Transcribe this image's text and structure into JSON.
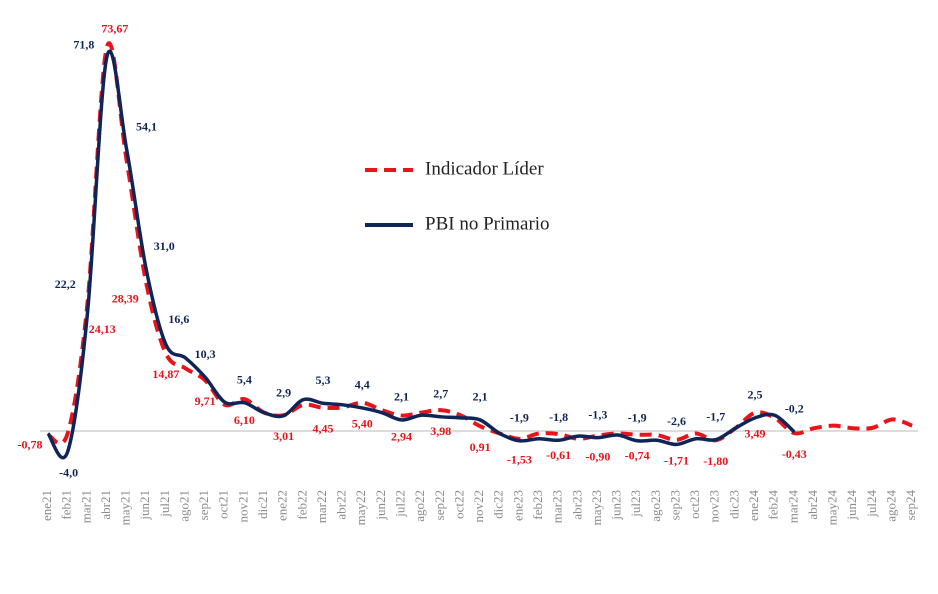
{
  "chart_data": {
    "type": "line",
    "categories": [
      "ene21",
      "feb21",
      "mar21",
      "abr21",
      "may21",
      "jun21",
      "jul21",
      "ago21",
      "sep21",
      "oct21",
      "nov21",
      "dic21",
      "ene22",
      "feb22",
      "mar22",
      "abr22",
      "may22",
      "jun22",
      "jul22",
      "ago22",
      "sep22",
      "oct22",
      "nov22",
      "dic22",
      "ene23",
      "feb23",
      "mar23",
      "abr23",
      "may23",
      "jun23",
      "jul23",
      "ago23",
      "sep23",
      "oct23",
      "nov23",
      "dic23",
      "ene24",
      "feb24",
      "mar24",
      "abr24",
      "may24",
      "jun24",
      "jul24",
      "ago24",
      "sep24"
    ],
    "series": [
      {
        "name": "Indicador Líder",
        "color": "#e8141b",
        "dashed": true,
        "values": [
          -0.78,
          -0.5,
          24.13,
          73.67,
          52,
          28.39,
          14.87,
          12,
          9.71,
          5,
          6.1,
          3.5,
          3.01,
          5,
          4.45,
          4.5,
          5.4,
          4,
          2.94,
          3.5,
          3.98,
          3,
          0.91,
          -0.5,
          -1.53,
          -0.5,
          -0.61,
          -1.5,
          -0.9,
          -0.5,
          -0.74,
          -0.8,
          -1.71,
          -0.5,
          -1.8,
          0.5,
          3.49,
          2.5,
          -0.43,
          0.5,
          1.0,
          0.5,
          0.6,
          2.2,
          1.0
        ],
        "value_labels": [
          "-0,78",
          null,
          "24,13",
          "73,67",
          null,
          "28,39",
          "14,87",
          null,
          "9,71",
          null,
          "6,10",
          null,
          "3,01",
          null,
          "4,45",
          null,
          "5,40",
          null,
          "2,94",
          null,
          "3,98",
          null,
          "0,91",
          null,
          "-1,53",
          null,
          "-0,61",
          null,
          "-0,90",
          null,
          "-0,74",
          null,
          "-1,71",
          null,
          "-1,80",
          null,
          "3,49",
          null,
          "-0,43",
          null,
          null,
          null,
          null,
          null,
          null
        ]
      },
      {
        "name": "PBI no Primario",
        "color": "#0f2557",
        "dashed": false,
        "values": [
          -0.5,
          -4.0,
          22.2,
          71.8,
          54.1,
          31.0,
          16.6,
          14.0,
          10.3,
          5.5,
          5.4,
          3.5,
          2.9,
          6.0,
          5.3,
          5.0,
          4.4,
          3.5,
          2.1,
          3.0,
          2.7,
          2.5,
          2.1,
          -0.5,
          -1.9,
          -1.5,
          -1.8,
          -1.0,
          -1.3,
          -0.8,
          -1.9,
          -1.8,
          -2.6,
          -1.5,
          -1.7,
          0.5,
          2.5,
          3.0,
          -0.2,
          null,
          null,
          null,
          null,
          null,
          null
        ],
        "value_labels": [
          null,
          "-4,0",
          "22,2",
          "71,8",
          "54,1",
          "31,0",
          "16,6",
          null,
          "10,3",
          null,
          "5,4",
          null,
          "2,9",
          null,
          "5,3",
          null,
          "4,4",
          null,
          "2,1",
          null,
          "2,7",
          null,
          "2,1",
          null,
          "-1,9",
          null,
          "-1,8",
          null,
          "-1,3",
          null,
          "-1,9",
          null,
          "-2,6",
          null,
          "-1,7",
          null,
          "2,5",
          null,
          "-0,2",
          null,
          null,
          null,
          null,
          null,
          null
        ]
      }
    ],
    "ylim": [
      -10,
      75
    ]
  }
}
